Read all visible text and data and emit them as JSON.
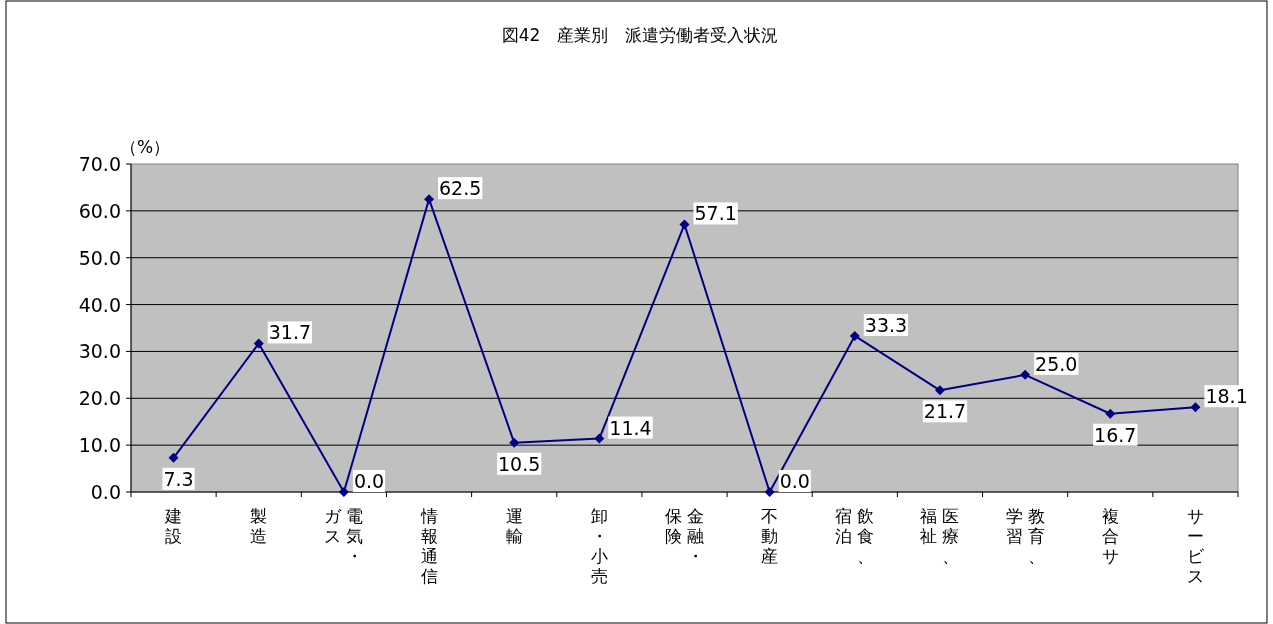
{
  "chart_data": {
    "type": "line",
    "title": "図42　産業別　派遣労働者受入状況",
    "ylabel": "（%）",
    "categories": [
      "建設",
      "製造",
      "電気・ガス",
      "情報通信",
      "運輸",
      "卸・小売",
      "金融・保険",
      "不動産",
      "飲食、宿泊",
      "医療、福祉",
      "教育、学習",
      "複合サ",
      "サービス"
    ],
    "series": [
      {
        "color": "#000080",
        "values": [
          7.3,
          31.7,
          0.0,
          62.5,
          10.5,
          11.4,
          57.1,
          0.0,
          33.3,
          21.7,
          25.0,
          16.7,
          18.1
        ],
        "value_labels": [
          "7.3",
          "31.7",
          "0.0",
          "62.5",
          "10.5",
          "11.4",
          "57.1",
          "0.0",
          "33.3",
          "21.7",
          "25.0",
          "16.7",
          "18.1"
        ]
      }
    ],
    "ylim": [
      0,
      70
    ],
    "yticks": [
      {
        "value": 0,
        "label": "0.0"
      },
      {
        "value": 10,
        "label": "10.0"
      },
      {
        "value": 20,
        "label": "20.0"
      },
      {
        "value": 30,
        "label": "30.0"
      },
      {
        "value": 40,
        "label": "40.0"
      },
      {
        "value": 50,
        "label": "50.0"
      },
      {
        "value": 60,
        "label": "60.0"
      },
      {
        "value": 70,
        "label": "70.0"
      }
    ],
    "grid": "y",
    "marker": "diamond",
    "line_style": "solid"
  }
}
